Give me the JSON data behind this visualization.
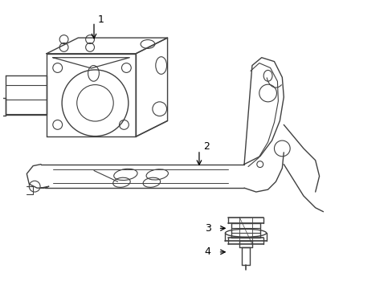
{
  "background_color": "#ffffff",
  "line_color": "#404040",
  "text_color": "#000000",
  "label_fontsize": 9,
  "fig_width": 4.89,
  "fig_height": 3.6,
  "dpi": 100
}
